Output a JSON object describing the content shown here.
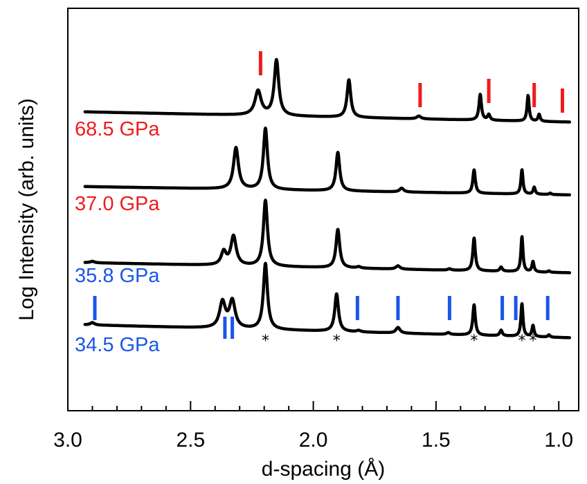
{
  "chart_data": {
    "type": "line",
    "xlabel": "d-spacing (Å)",
    "ylabel": "Log Intensity (arb. units)",
    "xlim": [
      3.0,
      0.95
    ],
    "x_reversed": true,
    "x_ticks": [
      3.0,
      2.5,
      2.0,
      1.5,
      1.0
    ],
    "x_tick_labels": [
      "3.0",
      "2.5",
      "2.0",
      "1.5",
      "1.0"
    ],
    "y_ticks_shown": false,
    "grid": false,
    "colors": {
      "red_phase": "#ee1c1c",
      "blue_phase": "#1a56e8",
      "trace": "#000000"
    },
    "series": [
      {
        "name": "34.5 GPa",
        "label_color": "#1a56e8",
        "baseline": 0.0,
        "slope": -0.28,
        "peaks": [
          {
            "d": 2.9,
            "h": 0.05,
            "w": 0.01
          },
          {
            "d": 2.37,
            "h": 0.55,
            "w": 0.014
          },
          {
            "d": 2.33,
            "h": 0.58,
            "w": 0.014
          },
          {
            "d": 2.195,
            "h": 1.4,
            "w": 0.01
          },
          {
            "d": 1.905,
            "h": 0.8,
            "w": 0.009
          },
          {
            "d": 1.815,
            "h": 0.03,
            "w": 0.01
          },
          {
            "d": 1.655,
            "h": 0.12,
            "w": 0.01
          },
          {
            "d": 1.45,
            "h": 0.04,
            "w": 0.008
          },
          {
            "d": 1.345,
            "h": 0.65,
            "w": 0.006
          },
          {
            "d": 1.235,
            "h": 0.12,
            "w": 0.006
          },
          {
            "d": 1.15,
            "h": 0.7,
            "w": 0.005
          },
          {
            "d": 1.105,
            "h": 0.24,
            "w": 0.005
          },
          {
            "d": 1.04,
            "h": 0.05,
            "w": 0.005
          }
        ]
      },
      {
        "name": "35.8 GPa",
        "label_color": "#1a56e8",
        "baseline": 1.0,
        "slope": -0.22,
        "peaks": [
          {
            "d": 2.9,
            "h": 0.03,
            "w": 0.01
          },
          {
            "d": 2.365,
            "h": 0.28,
            "w": 0.012
          },
          {
            "d": 2.325,
            "h": 0.62,
            "w": 0.013
          },
          {
            "d": 2.195,
            "h": 1.4,
            "w": 0.01
          },
          {
            "d": 1.9,
            "h": 0.82,
            "w": 0.009
          },
          {
            "d": 1.815,
            "h": 0.03,
            "w": 0.01
          },
          {
            "d": 1.655,
            "h": 0.07,
            "w": 0.01
          },
          {
            "d": 1.445,
            "h": 0.03,
            "w": 0.008
          },
          {
            "d": 1.345,
            "h": 0.7,
            "w": 0.006
          },
          {
            "d": 1.235,
            "h": 0.09,
            "w": 0.006
          },
          {
            "d": 1.15,
            "h": 0.75,
            "w": 0.005
          },
          {
            "d": 1.105,
            "h": 0.22,
            "w": 0.005
          },
          {
            "d": 1.04,
            "h": 0.03,
            "w": 0.005
          }
        ]
      },
      {
        "name": "37.0 GPa",
        "label_color": "#ee1c1c",
        "baseline": 2.0,
        "slope": -0.18,
        "peaks": [
          {
            "d": 2.315,
            "h": 0.88,
            "w": 0.012
          },
          {
            "d": 2.195,
            "h": 1.3,
            "w": 0.01
          },
          {
            "d": 1.9,
            "h": 0.82,
            "w": 0.009
          },
          {
            "d": 1.64,
            "h": 0.08,
            "w": 0.01
          },
          {
            "d": 1.345,
            "h": 0.5,
            "w": 0.006
          },
          {
            "d": 1.15,
            "h": 0.52,
            "w": 0.005
          },
          {
            "d": 1.1,
            "h": 0.15,
            "w": 0.005
          },
          {
            "d": 1.035,
            "h": 0.03,
            "w": 0.005
          }
        ]
      },
      {
        "name": "68.5 GPa",
        "label_color": "#ee1c1c",
        "baseline": 3.0,
        "slope": -0.22,
        "peaks": [
          {
            "d": 2.225,
            "h": 0.52,
            "w": 0.015
          },
          {
            "d": 2.15,
            "h": 1.18,
            "w": 0.011
          },
          {
            "d": 1.855,
            "h": 0.8,
            "w": 0.009
          },
          {
            "d": 1.57,
            "h": 0.06,
            "w": 0.01
          },
          {
            "d": 1.32,
            "h": 0.55,
            "w": 0.006
          },
          {
            "d": 1.285,
            "h": 0.12,
            "w": 0.006
          },
          {
            "d": 1.125,
            "h": 0.55,
            "w": 0.005
          },
          {
            "d": 1.08,
            "h": 0.15,
            "w": 0.005
          }
        ]
      }
    ],
    "tick_marks": [
      {
        "set": "68.5 GPa",
        "color": "#ee1c1c",
        "positions": [
          2.215,
          1.565,
          1.285,
          1.1,
          0.985
        ]
      },
      {
        "set": "34.5 GPa",
        "color": "#1a56e8",
        "positions": [
          2.89,
          1.82,
          1.655,
          1.445,
          1.23,
          1.175,
          1.045
        ]
      },
      {
        "set": "34.5 GPa doublet",
        "color": "#1a56e8",
        "positions": [
          2.36,
          2.33
        ]
      }
    ],
    "asterisks": {
      "symbol": "*",
      "positions": [
        2.195,
        1.905,
        1.345,
        1.15,
        1.105
      ]
    }
  }
}
